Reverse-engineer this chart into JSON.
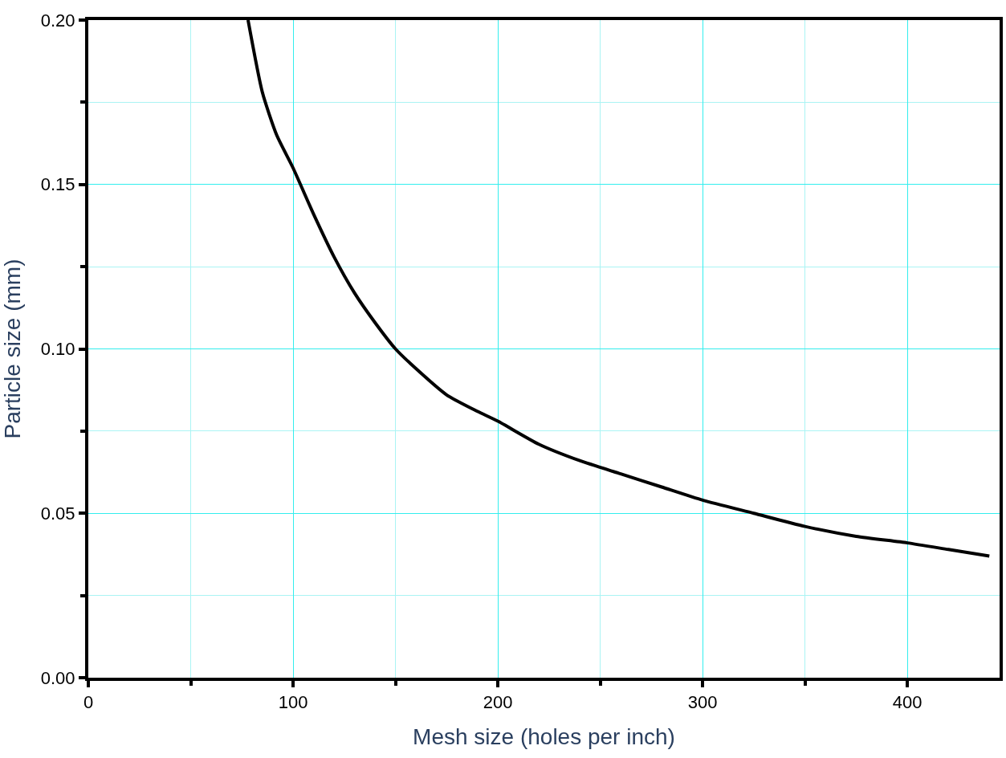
{
  "chart_data": {
    "type": "line",
    "xlabel": "Mesh size (holes per inch)",
    "ylabel": "Particle size (mm)",
    "series": [
      {
        "color": "#000000",
        "x": [
          78,
          85,
          92,
          100,
          110,
          120,
          130,
          140,
          150,
          160,
          175,
          190,
          200,
          220,
          240,
          260,
          280,
          300,
          325,
          350,
          375,
          400,
          420,
          440
        ],
        "values": [
          0.2,
          0.178,
          0.165,
          0.155,
          0.141,
          0.128,
          0.117,
          0.108,
          0.1,
          0.094,
          0.086,
          0.081,
          0.078,
          0.071,
          0.066,
          0.062,
          0.058,
          0.054,
          0.05,
          0.046,
          0.043,
          0.041,
          0.039,
          0.037
        ]
      }
    ],
    "xlim": [
      0,
      445
    ],
    "ylim": [
      0,
      0.2
    ],
    "xticks": [
      0,
      {
        "value": 50,
        "label": null
      },
      100,
      {
        "value": 150,
        "label": null
      },
      200,
      {
        "value": 250,
        "label": null
      },
      300,
      {
        "value": 350,
        "label": null
      },
      400
    ],
    "yticks": [
      "0.00",
      {
        "value": 0.025,
        "label": null
      },
      {
        "value": 0.05,
        "label": "0.05"
      },
      {
        "value": 0.075,
        "label": null
      },
      {
        "value": 0.1,
        "label": "0.10"
      },
      {
        "value": 0.125,
        "label": null
      },
      {
        "value": 0.15,
        "label": "0.15"
      },
      {
        "value": 0.175,
        "label": null
      },
      {
        "value": 0.2,
        "label": "0.20"
      }
    ],
    "grid": true,
    "legend": false,
    "marker": "none",
    "line_style": "solid"
  }
}
